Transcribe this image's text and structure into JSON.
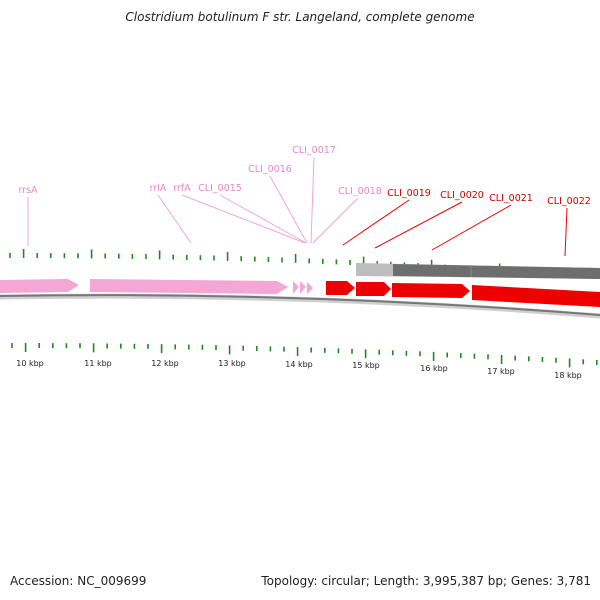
{
  "title": "Clostridium botulinum F str. Langeland, complete genome",
  "footer": {
    "accession": "Accession: NC_009699",
    "stats": "Topology: circular; Length: 3,995,387 bp; Genes: 3,781"
  },
  "colors": {
    "rna_feature": "#f4a6d4",
    "rna_label": "#e887c3",
    "gene_feature": "#ee0000",
    "gene_label": "#cc0000",
    "tick": "#228822",
    "backbone": "#777777",
    "cds_track": "#6e6e6e",
    "cds_track_light": "#bdbdbd"
  },
  "kbp_labels": [
    "10 kbp",
    "11 kbp",
    "12 kbp",
    "13 kbp",
    "14 kbp",
    "15 kbp",
    "16 kbp",
    "17 kbp",
    "18 kbp"
  ],
  "feature_labels": [
    {
      "text": "rrsA",
      "kind": "rna"
    },
    {
      "text": "rrlA",
      "kind": "rna"
    },
    {
      "text": "rrfA",
      "kind": "rna"
    },
    {
      "text": "CLI_0015",
      "kind": "rna"
    },
    {
      "text": "CLI_0016",
      "kind": "rna"
    },
    {
      "text": "CLI_0017",
      "kind": "rna"
    },
    {
      "text": "CLI_0018",
      "kind": "rna"
    },
    {
      "text": "CLI_0019",
      "kind": "gene"
    },
    {
      "text": "CLI_0020",
      "kind": "gene"
    },
    {
      "text": "CLI_0021",
      "kind": "gene"
    },
    {
      "text": "CLI_0022",
      "kind": "gene"
    }
  ]
}
